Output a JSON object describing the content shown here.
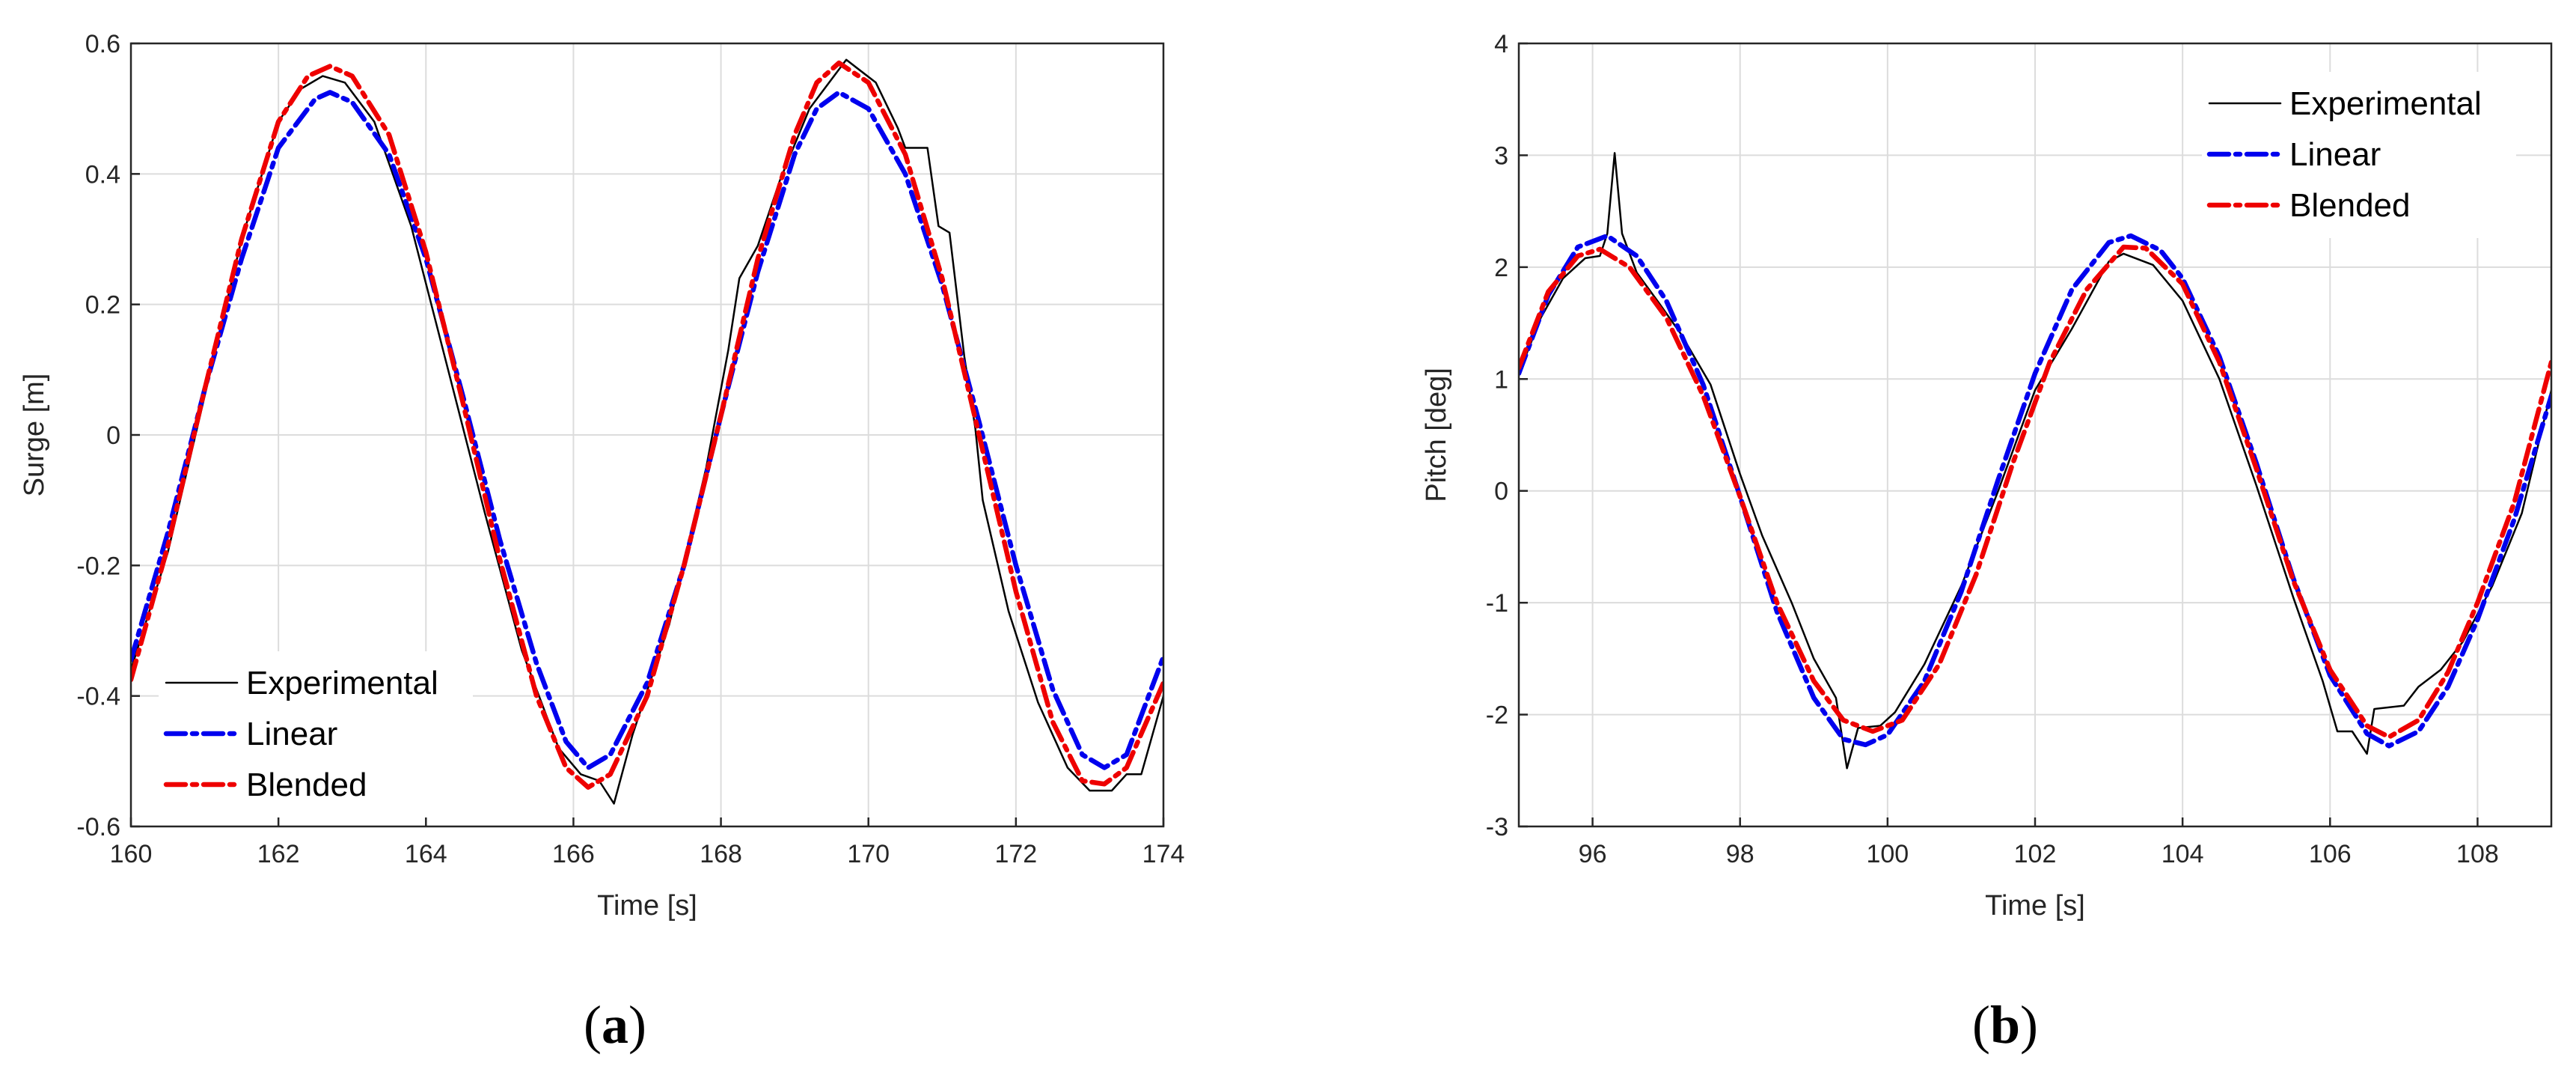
{
  "panels": [
    {
      "caption": "a",
      "chart_data": {
        "type": "line",
        "xlabel": "Time [s]",
        "ylabel": "Surge [m]",
        "xlim": [
          160,
          174
        ],
        "ylim": [
          -0.6,
          0.6
        ],
        "xticks": [
          160,
          162,
          164,
          166,
          168,
          170,
          172,
          174
        ],
        "yticks": [
          -0.6,
          -0.4,
          -0.2,
          0,
          0.2,
          0.4,
          0.6
        ],
        "xtick_labels": [
          "160",
          "162",
          "164",
          "166",
          "168",
          "170",
          "172",
          "174"
        ],
        "ytick_labels": [
          "-0.6",
          "-0.4",
          "-0.2",
          "0",
          "0.2",
          "0.4",
          "0.6"
        ],
        "grid": true,
        "legend_position": "bottom-left",
        "series": [
          {
            "name": "Experimental",
            "color": "#000000",
            "style": "solid",
            "points": [
              [
                160,
                -0.36
              ],
              [
                160.5,
                -0.18
              ],
              [
                161,
                0.06
              ],
              [
                161.5,
                0.3
              ],
              [
                162,
                0.48
              ],
              [
                162.3,
                0.53
              ],
              [
                162.6,
                0.55
              ],
              [
                162.9,
                0.54
              ],
              [
                163.3,
                0.48
              ],
              [
                163.8,
                0.32
              ],
              [
                164.3,
                0.1
              ],
              [
                164.8,
                -0.12
              ],
              [
                165.3,
                -0.33
              ],
              [
                165.8,
                -0.48
              ],
              [
                166.1,
                -0.52
              ],
              [
                166.35,
                -0.53
              ],
              [
                166.55,
                -0.565
              ],
              [
                166.8,
                -0.46
              ],
              [
                167.3,
                -0.29
              ],
              [
                167.8,
                -0.05
              ],
              [
                168.1,
                0.13
              ],
              [
                168.25,
                0.24
              ],
              [
                168.5,
                0.29
              ],
              [
                168.8,
                0.39
              ],
              [
                169.2,
                0.5
              ],
              [
                169.7,
                0.575
              ],
              [
                170.1,
                0.54
              ],
              [
                170.4,
                0.47
              ],
              [
                170.5,
                0.44
              ],
              [
                170.8,
                0.44
              ],
              [
                170.95,
                0.32
              ],
              [
                171.1,
                0.31
              ],
              [
                171.3,
                0.12
              ],
              [
                171.45,
                0.01
              ],
              [
                171.55,
                -0.1
              ],
              [
                171.9,
                -0.27
              ],
              [
                172.3,
                -0.41
              ],
              [
                172.7,
                -0.51
              ],
              [
                173,
                -0.545
              ],
              [
                173.3,
                -0.545
              ],
              [
                173.5,
                -0.52
              ],
              [
                173.7,
                -0.52
              ],
              [
                174,
                -0.4
              ]
            ]
          },
          {
            "name": "Linear",
            "color": "#0000ee",
            "style": "dashdot",
            "points": [
              [
                160,
                -0.345
              ],
              [
                160.5,
                -0.15
              ],
              [
                161,
                0.07
              ],
              [
                161.5,
                0.27
              ],
              [
                162,
                0.44
              ],
              [
                162.5,
                0.515
              ],
              [
                162.7,
                0.525
              ],
              [
                163,
                0.51
              ],
              [
                163.5,
                0.43
              ],
              [
                164,
                0.27
              ],
              [
                164.5,
                0.06
              ],
              [
                165,
                -0.16
              ],
              [
                165.5,
                -0.35
              ],
              [
                165.9,
                -0.47
              ],
              [
                166.2,
                -0.51
              ],
              [
                166.5,
                -0.49
              ],
              [
                167,
                -0.38
              ],
              [
                167.5,
                -0.2
              ],
              [
                168,
                0.03
              ],
              [
                168.5,
                0.25
              ],
              [
                169,
                0.43
              ],
              [
                169.3,
                0.5
              ],
              [
                169.6,
                0.525
              ],
              [
                170,
                0.5
              ],
              [
                170.5,
                0.4
              ],
              [
                171,
                0.23
              ],
              [
                171.5,
                0.02
              ],
              [
                172,
                -0.2
              ],
              [
                172.5,
                -0.39
              ],
              [
                172.9,
                -0.49
              ],
              [
                173.2,
                -0.51
              ],
              [
                173.5,
                -0.49
              ],
              [
                174,
                -0.34
              ]
            ]
          },
          {
            "name": "Blended",
            "color": "#ee0000",
            "style": "dashdot",
            "points": [
              [
                160,
                -0.375
              ],
              [
                160.5,
                -0.17
              ],
              [
                161,
                0.07
              ],
              [
                161.5,
                0.3
              ],
              [
                162,
                0.48
              ],
              [
                162.4,
                0.55
              ],
              [
                162.7,
                0.565
              ],
              [
                163,
                0.55
              ],
              [
                163.5,
                0.46
              ],
              [
                164,
                0.28
              ],
              [
                164.5,
                0.05
              ],
              [
                165,
                -0.19
              ],
              [
                165.5,
                -0.4
              ],
              [
                165.9,
                -0.51
              ],
              [
                166.2,
                -0.54
              ],
              [
                166.5,
                -0.52
              ],
              [
                167,
                -0.4
              ],
              [
                167.5,
                -0.2
              ],
              [
                168,
                0.03
              ],
              [
                168.5,
                0.27
              ],
              [
                169,
                0.46
              ],
              [
                169.3,
                0.54
              ],
              [
                169.6,
                0.57
              ],
              [
                170,
                0.54
              ],
              [
                170.5,
                0.43
              ],
              [
                171,
                0.24
              ],
              [
                171.5,
                0.0
              ],
              [
                172,
                -0.24
              ],
              [
                172.5,
                -0.44
              ],
              [
                172.9,
                -0.53
              ],
              [
                173.2,
                -0.535
              ],
              [
                173.5,
                -0.51
              ],
              [
                174,
                -0.38
              ]
            ]
          }
        ]
      }
    },
    {
      "caption": "b",
      "chart_data": {
        "type": "line",
        "xlabel": "Time [s]",
        "ylabel": "Pitch [deg]",
        "xlim": [
          95,
          109
        ],
        "ylim": [
          -3,
          4
        ],
        "xticks": [
          96,
          98,
          100,
          102,
          104,
          106,
          108
        ],
        "yticks": [
          -3,
          -2,
          -1,
          0,
          1,
          2,
          3,
          4
        ],
        "xtick_labels": [
          "96",
          "98",
          "100",
          "102",
          "104",
          "106",
          "108"
        ],
        "ytick_labels": [
          "-3",
          "-2",
          "-1",
          "0",
          "1",
          "2",
          "3",
          "4"
        ],
        "grid": true,
        "legend_position": "top-right",
        "series": [
          {
            "name": "Experimental",
            "color": "#000000",
            "style": "solid",
            "points": [
              [
                95,
                1.05
              ],
              [
                95.3,
                1.55
              ],
              [
                95.6,
                1.9
              ],
              [
                95.9,
                2.08
              ],
              [
                96.1,
                2.1
              ],
              [
                96.2,
                2.3
              ],
              [
                96.3,
                3.02
              ],
              [
                96.4,
                2.3
              ],
              [
                96.6,
                1.95
              ],
              [
                96.9,
                1.68
              ],
              [
                97.2,
                1.4
              ],
              [
                97.6,
                0.95
              ],
              [
                98,
                0.15
              ],
              [
                98.3,
                -0.4
              ],
              [
                98.7,
                -1.0
              ],
              [
                99,
                -1.5
              ],
              [
                99.3,
                -1.85
              ],
              [
                99.45,
                -2.48
              ],
              [
                99.6,
                -2.12
              ],
              [
                99.9,
                -2.1
              ],
              [
                100.1,
                -1.98
              ],
              [
                100.5,
                -1.55
              ],
              [
                101,
                -0.85
              ],
              [
                101.5,
                0.0
              ],
              [
                102,
                0.9
              ],
              [
                102.5,
                1.45
              ],
              [
                103,
                2.05
              ],
              [
                103.2,
                2.12
              ],
              [
                103.6,
                2.02
              ],
              [
                104,
                1.7
              ],
              [
                104.5,
                1.0
              ],
              [
                105,
                0.05
              ],
              [
                105.5,
                -0.95
              ],
              [
                105.9,
                -1.7
              ],
              [
                106.1,
                -2.15
              ],
              [
                106.3,
                -2.15
              ],
              [
                106.5,
                -2.35
              ],
              [
                106.6,
                -1.95
              ],
              [
                107,
                -1.92
              ],
              [
                107.2,
                -1.75
              ],
              [
                107.5,
                -1.6
              ],
              [
                107.8,
                -1.35
              ],
              [
                108.2,
                -0.85
              ],
              [
                108.6,
                -0.2
              ],
              [
                109,
                0.9
              ]
            ]
          },
          {
            "name": "Linear",
            "color": "#0000ee",
            "style": "dashdot",
            "points": [
              [
                95,
                1.05
              ],
              [
                95.4,
                1.75
              ],
              [
                95.8,
                2.18
              ],
              [
                96.2,
                2.28
              ],
              [
                96.6,
                2.1
              ],
              [
                97,
                1.7
              ],
              [
                97.5,
                0.95
              ],
              [
                98,
                -0.05
              ],
              [
                98.5,
                -1.08
              ],
              [
                99,
                -1.85
              ],
              [
                99.4,
                -2.22
              ],
              [
                99.7,
                -2.27
              ],
              [
                100,
                -2.18
              ],
              [
                100.5,
                -1.7
              ],
              [
                101,
                -0.9
              ],
              [
                101.5,
                0.1
              ],
              [
                102,
                1.05
              ],
              [
                102.5,
                1.8
              ],
              [
                103,
                2.22
              ],
              [
                103.3,
                2.28
              ],
              [
                103.7,
                2.15
              ],
              [
                104,
                1.9
              ],
              [
                104.5,
                1.2
              ],
              [
                105,
                0.25
              ],
              [
                105.5,
                -0.78
              ],
              [
                106,
                -1.65
              ],
              [
                106.5,
                -2.17
              ],
              [
                106.8,
                -2.28
              ],
              [
                107.2,
                -2.15
              ],
              [
                107.6,
                -1.75
              ],
              [
                108,
                -1.15
              ],
              [
                108.5,
                -0.25
              ],
              [
                109,
                0.85
              ]
            ]
          },
          {
            "name": "Blended",
            "color": "#ee0000",
            "style": "dashdot",
            "points": [
              [
                95,
                1.1
              ],
              [
                95.4,
                1.78
              ],
              [
                95.8,
                2.1
              ],
              [
                96.1,
                2.16
              ],
              [
                96.5,
                2.0
              ],
              [
                97,
                1.55
              ],
              [
                97.5,
                0.85
              ],
              [
                98,
                -0.05
              ],
              [
                98.5,
                -1.0
              ],
              [
                99,
                -1.7
              ],
              [
                99.4,
                -2.05
              ],
              [
                99.8,
                -2.15
              ],
              [
                100.2,
                -2.05
              ],
              [
                100.7,
                -1.55
              ],
              [
                101.2,
                -0.75
              ],
              [
                101.7,
                0.25
              ],
              [
                102.2,
                1.15
              ],
              [
                102.7,
                1.8
              ],
              [
                103.2,
                2.18
              ],
              [
                103.5,
                2.17
              ],
              [
                104,
                1.85
              ],
              [
                104.5,
                1.15
              ],
              [
                105,
                0.2
              ],
              [
                105.5,
                -0.8
              ],
              [
                106,
                -1.6
              ],
              [
                106.5,
                -2.1
              ],
              [
                106.8,
                -2.2
              ],
              [
                107.2,
                -2.05
              ],
              [
                107.6,
                -1.62
              ],
              [
                108,
                -1.0
              ],
              [
                108.5,
                -0.1
              ],
              [
                109,
                1.15
              ]
            ]
          }
        ]
      }
    }
  ]
}
